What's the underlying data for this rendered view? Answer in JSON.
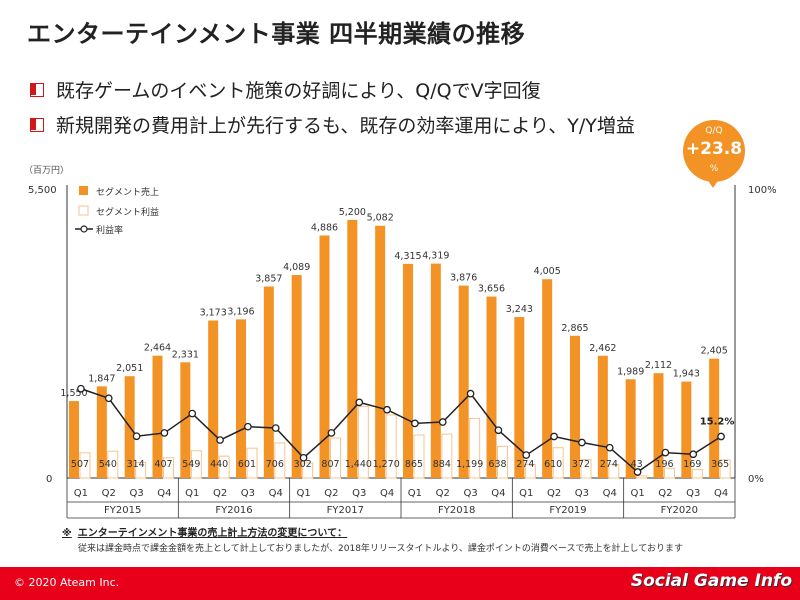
{
  "title": "エンターテインメント事業 四半期業績の推移",
  "bullets": [
    "既存ゲームのイベント施策の好調により、Q/QでV字回復",
    "新規開発の費用計上が先行するも、既存の効率運用により、Y/Y増益"
  ],
  "badge": {
    "label": "Q/Q",
    "value": "+23.8",
    "unit": "%"
  },
  "note": {
    "mark": "※",
    "heading": "エンターテインメント事業の売上計上方法の変更について：",
    "body": "従来は課金時点で課金金額を売上として計上しておりましたが、2018年リリースタイトルより、課金ポイントの消費ベースで売上を計上しております"
  },
  "footer": {
    "copyright": "© 2020 Ateam Inc.",
    "watermark": "Social Game Info"
  },
  "colors": {
    "accent": "#f39325",
    "red": "#e8001a"
  },
  "chart_data": {
    "type": "bar",
    "unit_label": "（百万円）",
    "y_left": {
      "min": 0,
      "max": 5500,
      "ticks": [
        "5,500",
        "0"
      ]
    },
    "y_right": {
      "min": 0,
      "max": 100,
      "ticks": [
        "100%",
        "0%"
      ]
    },
    "quarters": [
      "Q1",
      "Q2",
      "Q3",
      "Q4",
      "Q1",
      "Q2",
      "Q3",
      "Q4",
      "Q1",
      "Q2",
      "Q3",
      "Q4",
      "Q1",
      "Q2",
      "Q3",
      "Q4",
      "Q1",
      "Q2",
      "Q3",
      "Q4",
      "Q1",
      "Q2",
      "Q3",
      "Q4"
    ],
    "years": [
      "FY2015",
      "FY2016",
      "FY2017",
      "FY2018",
      "FY2019",
      "FY2020"
    ],
    "series": [
      {
        "name": "セグメント売上",
        "style": "filled",
        "values": [
          1550,
          1847,
          2051,
          2464,
          2331,
          3173,
          3196,
          3857,
          4089,
          4886,
          5200,
          5082,
          4315,
          4319,
          3876,
          3656,
          3243,
          4005,
          2865,
          2462,
          1989,
          2112,
          1943,
          2405
        ],
        "labels": [
          "1,550",
          "1,847",
          "2,051",
          "2,464",
          "2,331",
          "3,173",
          "3,196",
          "3,857",
          "4,089",
          "4,886",
          "5,200",
          "5,082",
          "4,315",
          "4,319",
          "3,876",
          "3,656",
          "3,243",
          "4,005",
          "2,865",
          "2,462",
          "1,989",
          "2,112",
          "1,943",
          "2,405"
        ]
      },
      {
        "name": "セグメント利益",
        "style": "outline",
        "values": [
          507,
          540,
          314,
          407,
          549,
          440,
          601,
          706,
          302,
          807,
          1440,
          1270,
          865,
          884,
          1199,
          638,
          274,
          610,
          372,
          274,
          43,
          196,
          169,
          365
        ],
        "labels": [
          "507",
          "540",
          "314",
          "407",
          "549",
          "440",
          "601",
          "706",
          "302",
          "807",
          "1,440",
          "1,270",
          "865",
          "884",
          "1,199",
          "638",
          "274",
          "610",
          "372",
          "274",
          "43",
          "196",
          "169",
          "365"
        ]
      },
      {
        "name": "利益率",
        "style": "line",
        "axis": "right",
        "values": [
          32.7,
          29.2,
          15.3,
          16.5,
          23.6,
          13.9,
          18.8,
          18.3,
          7.4,
          16.5,
          27.7,
          25.0,
          20.0,
          20.5,
          30.9,
          17.5,
          8.4,
          15.2,
          13.0,
          11.1,
          2.2,
          9.3,
          8.7,
          15.2
        ]
      }
    ],
    "annotation": {
      "index": 23,
      "text": "15.2%"
    }
  }
}
